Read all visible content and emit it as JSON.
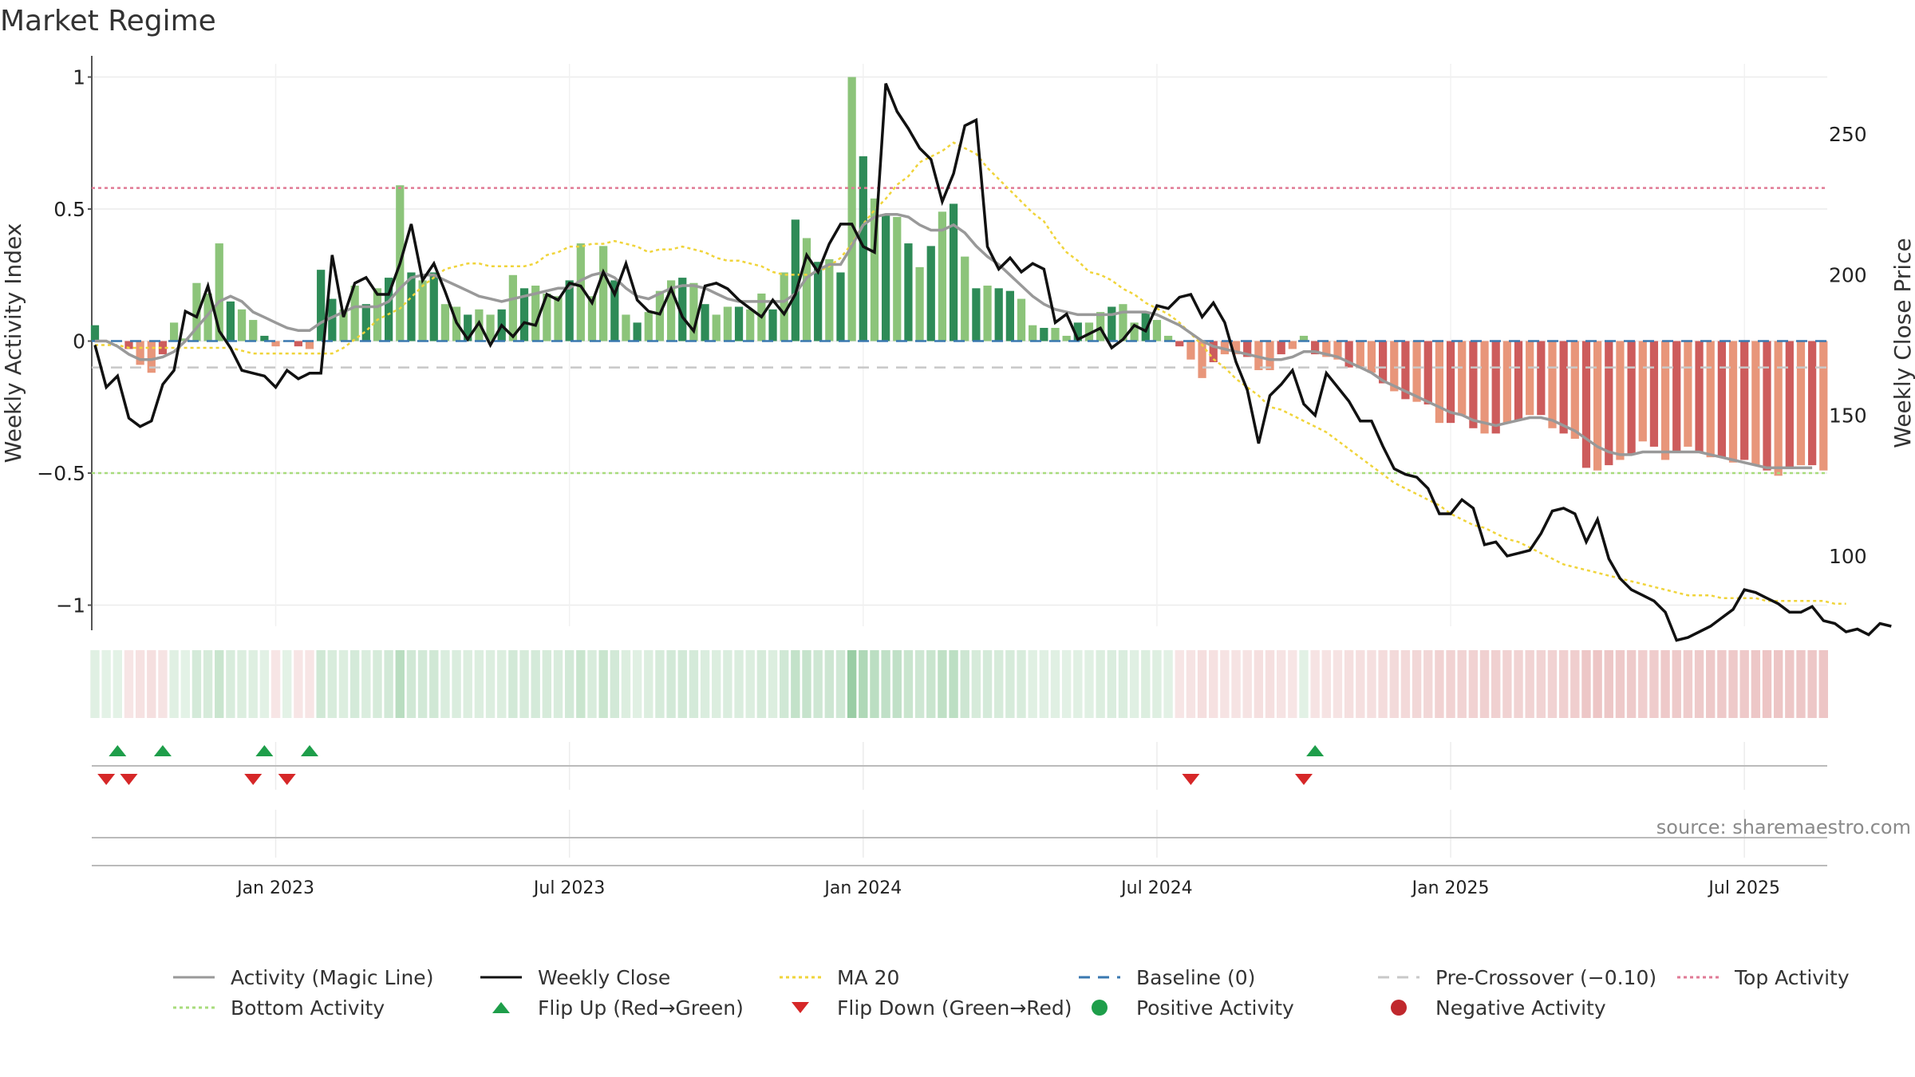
{
  "title": "Market Regime",
  "source": "source: sharemaestro.com",
  "chart_data": {
    "type": "bar+line",
    "title": "Market Regime",
    "ylabel_left": "Weekly Activity Index",
    "ylabel_right": "Weekly Close Price",
    "left_ylim": [
      -1.08,
      1.05
    ],
    "right_ylim": [
      75,
      275
    ],
    "left_ticks": [
      {
        "v": 1,
        "t": "1"
      },
      {
        "v": 0.5,
        "t": "0.5"
      },
      {
        "v": 0,
        "t": "0"
      },
      {
        "v": -0.5,
        "t": "−0.5"
      },
      {
        "v": -1,
        "t": "−1"
      }
    ],
    "right_ticks": [
      {
        "v": 250,
        "t": "250"
      },
      {
        "v": 200,
        "t": "200"
      },
      {
        "v": 150,
        "t": "150"
      },
      {
        "v": 100,
        "t": "100"
      }
    ],
    "x_start": "2022-09-12",
    "x_tick_labels": [
      {
        "week": 16,
        "t": "Jan 2023"
      },
      {
        "week": 42,
        "t": "Jul 2023"
      },
      {
        "week": 68,
        "t": "Jan 2024"
      },
      {
        "week": 94,
        "t": "Jul 2024"
      },
      {
        "week": 120,
        "t": "Jan 2025"
      },
      {
        "week": 146,
        "t": "Jul 2025"
      }
    ],
    "activity": [
      0.06,
      0.0,
      0.0,
      -0.03,
      -0.09,
      -0.12,
      -0.05,
      0.07,
      0.01,
      0.22,
      0.18,
      0.37,
      0.15,
      0.12,
      0.08,
      0.02,
      -0.02,
      0.0,
      -0.02,
      -0.03,
      0.27,
      0.16,
      0.12,
      0.21,
      0.14,
      0.2,
      0.24,
      0.59,
      0.26,
      0.23,
      0.26,
      0.14,
      0.13,
      0.1,
      0.12,
      0.1,
      0.12,
      0.25,
      0.2,
      0.21,
      0.18,
      0.17,
      0.23,
      0.37,
      0.17,
      0.36,
      0.23,
      0.1,
      0.07,
      0.11,
      0.19,
      0.23,
      0.24,
      0.22,
      0.14,
      0.1,
      0.13,
      0.13,
      0.12,
      0.18,
      0.12,
      0.26,
      0.46,
      0.39,
      0.3,
      0.31,
      0.26,
      1.0,
      0.7,
      0.54,
      0.48,
      0.47,
      0.37,
      0.28,
      0.36,
      0.49,
      0.52,
      0.32,
      0.2,
      0.21,
      0.2,
      0.19,
      0.16,
      0.06,
      0.05,
      0.05,
      0.02,
      0.07,
      0.07,
      0.11,
      0.13,
      0.14,
      0.07,
      0.11,
      0.08,
      0.02,
      -0.02,
      -0.07,
      -0.14,
      -0.08,
      -0.05,
      -0.05,
      -0.06,
      -0.11,
      -0.11,
      -0.05,
      -0.03,
      0.02,
      -0.05,
      -0.06,
      -0.07,
      -0.1,
      -0.1,
      -0.12,
      -0.16,
      -0.19,
      -0.22,
      -0.23,
      -0.24,
      -0.31,
      -0.31,
      -0.28,
      -0.33,
      -0.35,
      -0.35,
      -0.31,
      -0.3,
      -0.28,
      -0.28,
      -0.33,
      -0.35,
      -0.37,
      -0.48,
      -0.49,
      -0.47,
      -0.45,
      -0.43,
      -0.38,
      -0.4,
      -0.45,
      -0.42,
      -0.4,
      -0.42,
      -0.44,
      -0.44,
      -0.46,
      -0.45,
      -0.47,
      -0.49,
      -0.51,
      -0.48,
      -0.47,
      -0.47,
      -0.49
    ],
    "magic_line": [
      0.0,
      0.0,
      -0.02,
      -0.05,
      -0.07,
      -0.07,
      -0.06,
      -0.04,
      0.0,
      0.05,
      0.1,
      0.15,
      0.17,
      0.15,
      0.11,
      0.09,
      0.07,
      0.05,
      0.04,
      0.04,
      0.07,
      0.09,
      0.11,
      0.13,
      0.13,
      0.13,
      0.15,
      0.2,
      0.24,
      0.25,
      0.25,
      0.23,
      0.21,
      0.19,
      0.17,
      0.16,
      0.15,
      0.16,
      0.17,
      0.18,
      0.19,
      0.2,
      0.2,
      0.23,
      0.25,
      0.26,
      0.24,
      0.2,
      0.17,
      0.16,
      0.18,
      0.2,
      0.21,
      0.21,
      0.2,
      0.18,
      0.16,
      0.15,
      0.15,
      0.15,
      0.15,
      0.15,
      0.18,
      0.24,
      0.27,
      0.29,
      0.29,
      0.36,
      0.44,
      0.47,
      0.48,
      0.48,
      0.47,
      0.44,
      0.42,
      0.42,
      0.44,
      0.41,
      0.36,
      0.32,
      0.29,
      0.25,
      0.21,
      0.17,
      0.14,
      0.12,
      0.11,
      0.1,
      0.1,
      0.1,
      0.1,
      0.11,
      0.11,
      0.11,
      0.1,
      0.08,
      0.06,
      0.03,
      0.0,
      -0.02,
      -0.03,
      -0.04,
      -0.05,
      -0.06,
      -0.07,
      -0.07,
      -0.06,
      -0.04,
      -0.04,
      -0.05,
      -0.06,
      -0.08,
      -0.1,
      -0.12,
      -0.15,
      -0.17,
      -0.19,
      -0.21,
      -0.23,
      -0.25,
      -0.27,
      -0.28,
      -0.3,
      -0.31,
      -0.32,
      -0.31,
      -0.3,
      -0.29,
      -0.29,
      -0.3,
      -0.32,
      -0.34,
      -0.37,
      -0.4,
      -0.42,
      -0.43,
      -0.43,
      -0.42,
      -0.42,
      -0.42,
      -0.42,
      -0.42,
      -0.42,
      -0.43,
      -0.44,
      -0.45,
      -0.46,
      -0.47,
      -0.48,
      -0.48,
      -0.48,
      -0.48,
      -0.48
    ],
    "close": [
      175,
      160,
      164,
      149,
      146,
      148,
      161,
      166,
      187,
      185,
      196,
      180,
      174,
      166,
      165,
      164,
      160,
      166,
      163,
      165,
      165,
      207,
      185,
      197,
      199,
      193,
      193,
      204,
      218,
      198,
      204,
      194,
      183,
      177,
      183,
      175,
      182,
      178,
      183,
      182,
      193,
      191,
      197,
      196,
      190,
      201,
      193,
      204,
      191,
      187,
      186,
      195,
      185,
      180,
      196,
      197,
      195,
      191,
      188,
      185,
      191,
      186,
      193,
      207,
      201,
      211,
      218,
      218,
      210,
      208,
      268,
      258,
      252,
      245,
      241,
      226,
      236,
      253,
      255,
      210,
      202,
      206,
      201,
      204,
      202,
      183,
      186,
      177,
      179,
      181,
      174,
      177,
      182,
      180,
      189,
      188,
      192,
      193,
      185,
      190,
      183,
      169,
      159,
      140,
      157,
      161,
      166,
      154,
      150,
      165,
      160,
      155,
      148,
      148,
      139,
      131,
      129,
      128,
      124,
      115,
      115,
      120,
      117,
      104,
      105,
      100,
      101,
      102,
      108,
      116,
      117,
      115,
      105,
      113,
      99,
      92,
      88,
      86,
      84,
      80,
      70,
      71,
      73,
      75,
      78,
      81,
      88,
      87,
      85,
      83,
      80,
      80,
      82,
      77,
      76,
      73,
      74,
      72,
      76,
      75
    ],
    "ma20": [
      175,
      175,
      175,
      174,
      174,
      174,
      174,
      174,
      174,
      174,
      174,
      174,
      174,
      173,
      172,
      172,
      172,
      172,
      172,
      172,
      172,
      172,
      174,
      177,
      180,
      184,
      186,
      188,
      192,
      196,
      199,
      202,
      203,
      204,
      204,
      203,
      203,
      203,
      203,
      204,
      207,
      208,
      210,
      210,
      211,
      211,
      212,
      211,
      210,
      208,
      209,
      209,
      210,
      209,
      208,
      206,
      205,
      205,
      204,
      203,
      201,
      200,
      200,
      200,
      201,
      203,
      206,
      211,
      218,
      223,
      227,
      232,
      235,
      240,
      242,
      244,
      247,
      245,
      243,
      238,
      234,
      230,
      226,
      222,
      219,
      213,
      208,
      205,
      201,
      200,
      198,
      195,
      193,
      190,
      188,
      186,
      183,
      179,
      175,
      170,
      167,
      163,
      160,
      157,
      153,
      152,
      150,
      148,
      146,
      144,
      141,
      138,
      135,
      132,
      129,
      126,
      124,
      122,
      120,
      118,
      115,
      113,
      111,
      110,
      108,
      106,
      105,
      103,
      101,
      99,
      97,
      96,
      95,
      94,
      93,
      92,
      91,
      90,
      89,
      88,
      87,
      86,
      86,
      86,
      85,
      85,
      85,
      85,
      84,
      84,
      84,
      84,
      84,
      84,
      83,
      83
    ],
    "flip_up_weeks": [
      2,
      6,
      15,
      19,
      108
    ],
    "flip_down_weeks": [
      1,
      3,
      14,
      17,
      97,
      107
    ],
    "reference_lines": {
      "baseline": 0,
      "pre_crossover": -0.1,
      "top_activity": 0.58,
      "bottom_activity": -0.5
    }
  },
  "legend": [
    {
      "label": "Activity (Magic Line)",
      "kind": "line",
      "color": "#999999",
      "dash": ""
    },
    {
      "label": "Weekly Close",
      "kind": "line",
      "color": "#111111",
      "dash": ""
    },
    {
      "label": "MA 20",
      "kind": "line",
      "color": "#f0d43a",
      "dash": "4,4"
    },
    {
      "label": "Baseline (0)",
      "kind": "line",
      "color": "#3a78b0",
      "dash": "14,10"
    },
    {
      "label": "Pre-Crossover (−0.10)",
      "kind": "line",
      "color": "#c8c8c8",
      "dash": "14,10"
    },
    {
      "label": "Top Activity",
      "kind": "line",
      "color": "#e07a95",
      "dash": "4,4"
    },
    {
      "label": "Bottom Activity",
      "kind": "line",
      "color": "#a8dc7c",
      "dash": "4,4"
    },
    {
      "label": "Flip Up (Red→Green)",
      "kind": "tri-up",
      "color": "#1e9e4a",
      "dash": ""
    },
    {
      "label": "Flip Down (Green→Red)",
      "kind": "tri-down",
      "color": "#d62728",
      "dash": ""
    },
    {
      "label": "Positive Activity",
      "kind": "dot",
      "color": "#1e9e4a",
      "dash": ""
    },
    {
      "label": "Negative Activity",
      "kind": "dot",
      "color": "#c0282d",
      "dash": ""
    }
  ]
}
